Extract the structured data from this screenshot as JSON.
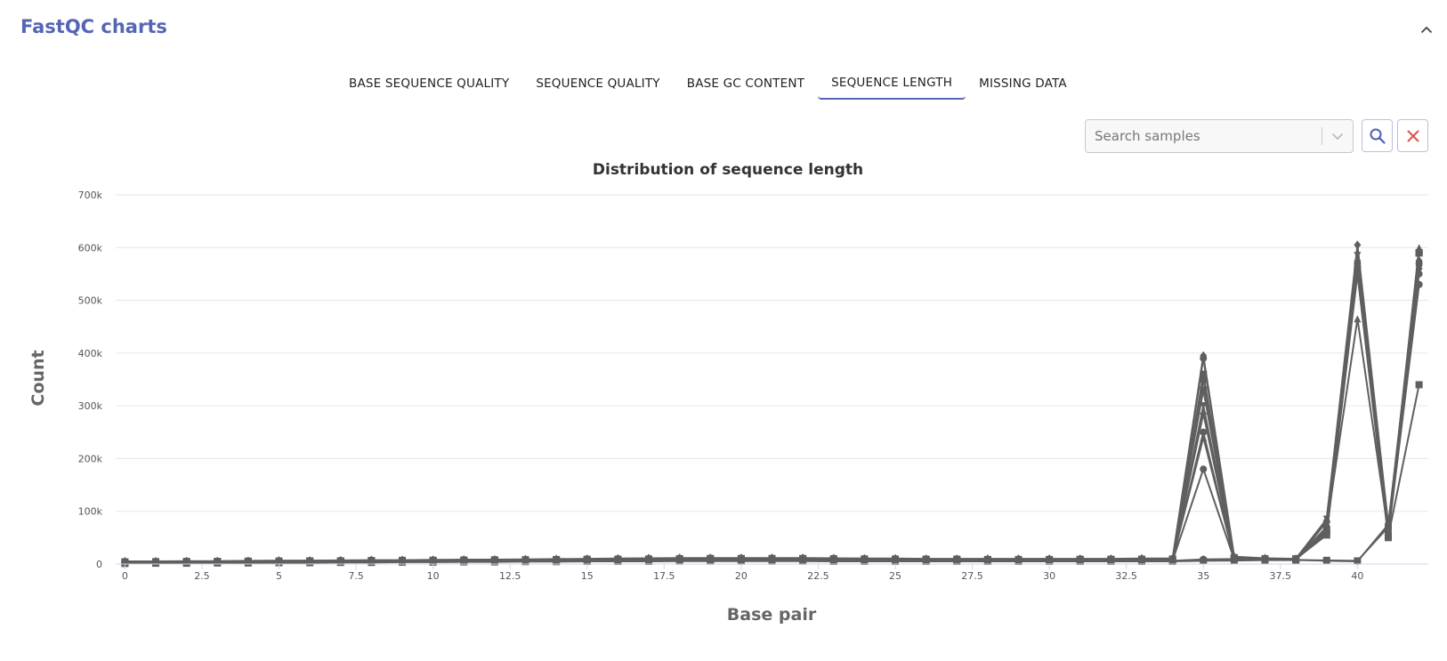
{
  "panel": {
    "title": "FastQC charts"
  },
  "colors": {
    "accent": "#5565b4",
    "series": "#5f5f5f",
    "clear": "#d9534f",
    "grid": "#e6e6e6"
  },
  "icons": {
    "collapse": "chevron-up-icon",
    "dropdown": "chevron-down-icon",
    "search": "search-icon",
    "clear": "close-icon"
  },
  "tabs": [
    {
      "label": "BASE SEQUENCE QUALITY",
      "active": false
    },
    {
      "label": "SEQUENCE QUALITY",
      "active": false
    },
    {
      "label": "BASE GC CONTENT",
      "active": false
    },
    {
      "label": "SEQUENCE LENGTH",
      "active": true
    },
    {
      "label": "MISSING DATA",
      "active": false
    }
  ],
  "search": {
    "placeholder": "Search samples"
  },
  "chart_data": {
    "type": "line",
    "title": "Distribution of sequence length",
    "xlabel": "Base pair",
    "ylabel": "Count",
    "xlim": [
      -0.3,
      42.3
    ],
    "ylim": [
      0,
      700000
    ],
    "xticks": [
      0,
      2.5,
      5,
      7.5,
      10,
      12.5,
      15,
      17.5,
      20,
      22.5,
      25,
      27.5,
      30,
      32.5,
      35,
      37.5,
      40
    ],
    "xtick_labels": [
      "0",
      "2.5",
      "5",
      "7.5",
      "10",
      "12.5",
      "15",
      "17.5",
      "20",
      "22.5",
      "25",
      "27.5",
      "30",
      "32.5",
      "35",
      "37.5",
      "40"
    ],
    "yticks": [
      0,
      100000,
      200000,
      300000,
      400000,
      500000,
      600000,
      700000
    ],
    "ytick_labels": [
      "0",
      "100k",
      "200k",
      "300k",
      "400k",
      "500k",
      "600k",
      "700k"
    ],
    "grid": true,
    "legend": "none",
    "x": [
      0,
      1,
      2,
      3,
      4,
      5,
      6,
      7,
      8,
      9,
      10,
      11,
      12,
      13,
      14,
      15,
      16,
      17,
      18,
      19,
      20,
      21,
      22,
      23,
      24,
      25,
      26,
      27,
      28,
      29,
      30,
      31,
      32,
      33,
      34,
      35,
      36,
      37,
      38,
      39,
      40,
      41,
      42
    ],
    "series": [
      {
        "marker": "circle",
        "values": [
          2000,
          2500,
          3000,
          3500,
          4000,
          4200,
          4500,
          4800,
          5000,
          5200,
          5500,
          6000,
          6500,
          7000,
          7500,
          8000,
          8500,
          9000,
          9500,
          9500,
          9500,
          9500,
          9500,
          9000,
          8500,
          8000,
          8000,
          7500,
          7500,
          7500,
          7500,
          7500,
          8000,
          8000,
          8000,
          390000,
          10000,
          8000,
          8000,
          80000,
          550000,
          60000,
          570000
        ]
      },
      {
        "marker": "circle",
        "values": [
          1500,
          2000,
          2500,
          3000,
          3500,
          3500,
          4000,
          4000,
          4500,
          4500,
          5000,
          5000,
          5500,
          5500,
          6000,
          6000,
          6000,
          6500,
          6500,
          6500,
          6500,
          6500,
          6500,
          6000,
          6000,
          6000,
          6000,
          6000,
          6000,
          6000,
          6000,
          6000,
          6000,
          6000,
          6000,
          180000,
          9000,
          8000,
          8000,
          70000,
          560000,
          70000,
          530000
        ]
      },
      {
        "marker": "circle",
        "values": [
          3000,
          3000,
          3500,
          4000,
          4500,
          5000,
          5500,
          6000,
          6000,
          6500,
          7000,
          7000,
          7500,
          8000,
          8000,
          8500,
          9000,
          9500,
          10000,
          10000,
          10000,
          10000,
          10000,
          9500,
          9500,
          9000,
          9000,
          8500,
          8500,
          8500,
          8500,
          8500,
          8500,
          9000,
          9000,
          250000,
          10000,
          9000,
          9000,
          60000,
          570000,
          55000,
          530000
        ]
      },
      {
        "marker": "square",
        "values": [
          4000,
          4500,
          5000,
          5000,
          5500,
          5500,
          6000,
          6000,
          6500,
          6500,
          7000,
          7500,
          7500,
          8000,
          8000,
          8500,
          9000,
          9500,
          10000,
          10500,
          10500,
          10500,
          10500,
          10000,
          9500,
          9500,
          9000,
          9000,
          8500,
          8500,
          8500,
          9000,
          9000,
          9000,
          9500,
          360000,
          11000,
          9500,
          9500,
          55000,
          550000,
          50000,
          590000
        ]
      },
      {
        "marker": "square",
        "values": [
          3500,
          4000,
          4000,
          4500,
          5000,
          5000,
          5500,
          6000,
          6000,
          6500,
          6500,
          7000,
          7500,
          7500,
          8000,
          8500,
          8500,
          9000,
          9500,
          9500,
          10000,
          10000,
          10000,
          9500,
          9000,
          9000,
          8500,
          8500,
          8500,
          8500,
          8500,
          8500,
          8500,
          9000,
          9000,
          330000,
          12000,
          10000,
          9000,
          60000,
          555000,
          52000,
          340000
        ]
      },
      {
        "marker": "square",
        "values": [
          2500,
          3000,
          3000,
          3500,
          4000,
          4000,
          4500,
          4500,
          5000,
          5000,
          5500,
          5500,
          6000,
          6500,
          6500,
          7000,
          7500,
          7500,
          8000,
          8000,
          8000,
          8000,
          8000,
          7500,
          7500,
          7500,
          7000,
          7000,
          7000,
          7000,
          7000,
          7000,
          7000,
          7500,
          7500,
          350000,
          10000,
          9000,
          9000,
          65000,
          560000,
          55000,
          590000
        ]
      },
      {
        "marker": "triangle-up",
        "values": [
          3000,
          3500,
          4000,
          4000,
          4500,
          5000,
          5000,
          5500,
          6000,
          6000,
          6500,
          7000,
          7000,
          7500,
          8000,
          8000,
          8500,
          9000,
          9000,
          9500,
          9500,
          9500,
          9500,
          9000,
          9000,
          8500,
          8500,
          8000,
          8000,
          8000,
          8000,
          8000,
          8000,
          8500,
          8500,
          240000,
          11000,
          9000,
          9000,
          70000,
          465000,
          60000,
          600000
        ]
      },
      {
        "marker": "triangle-down",
        "values": [
          4000,
          4000,
          4500,
          5000,
          5000,
          5500,
          6000,
          6000,
          6500,
          7000,
          7000,
          7500,
          8000,
          8000,
          8500,
          9000,
          9000,
          9500,
          10000,
          10000,
          10000,
          10000,
          10000,
          9500,
          9500,
          9000,
          9000,
          9000,
          8500,
          8500,
          8500,
          8500,
          8500,
          9000,
          9000,
          300000,
          12000,
          10000,
          10000,
          85000,
          585000,
          65000,
          560000
        ]
      },
      {
        "marker": "diamond",
        "values": [
          5000,
          5000,
          5500,
          5500,
          6000,
          6500,
          6500,
          7000,
          7500,
          7500,
          8000,
          8500,
          8500,
          9000,
          9500,
          10000,
          10500,
          11000,
          11500,
          11500,
          11500,
          11500,
          11500,
          11000,
          10500,
          10500,
          10000,
          10000,
          10000,
          10000,
          10000,
          10000,
          10000,
          10500,
          10500,
          395000,
          14000,
          11000,
          10000,
          82000,
          605000,
          75000,
          575000
        ]
      },
      {
        "marker": "diamond",
        "values": [
          3000,
          3500,
          3500,
          4000,
          4500,
          4500,
          5000,
          5500,
          5500,
          6000,
          6000,
          6500,
          7000,
          7000,
          7500,
          8000,
          8000,
          8500,
          9000,
          9000,
          9000,
          9000,
          9000,
          8500,
          8500,
          8000,
          8000,
          8000,
          7500,
          7500,
          7500,
          7500,
          7500,
          8000,
          8000,
          285000,
          10000,
          9000,
          9000,
          58000,
          575000,
          58000,
          560000
        ]
      },
      {
        "marker": "circle",
        "values": [
          2000,
          2000,
          2500,
          2500,
          3000,
          3000,
          3500,
          3500,
          4000,
          4000,
          4500,
          4500,
          5000,
          5000,
          5500,
          5500,
          6000,
          6000,
          6500,
          6500,
          6500,
          6500,
          6500,
          6000,
          6000,
          6000,
          5500,
          5500,
          5500,
          5500,
          5500,
          5500,
          5500,
          6000,
          6000,
          9000,
          9500,
          8500,
          8000,
          6000,
          5000,
          75000,
          550000
        ]
      },
      {
        "marker": "square",
        "values": [
          1000,
          1500,
          1500,
          2000,
          2000,
          2500,
          2500,
          3000,
          3000,
          3500,
          3500,
          4000,
          4000,
          4500,
          4500,
          5000,
          5000,
          5000,
          5500,
          5500,
          5500,
          5500,
          5500,
          5000,
          5000,
          5000,
          5000,
          5000,
          5000,
          5000,
          5000,
          5000,
          5000,
          5000,
          5000,
          6000,
          6500,
          7500,
          7500,
          7000,
          6000,
          70000,
          590000
        ]
      }
    ]
  }
}
